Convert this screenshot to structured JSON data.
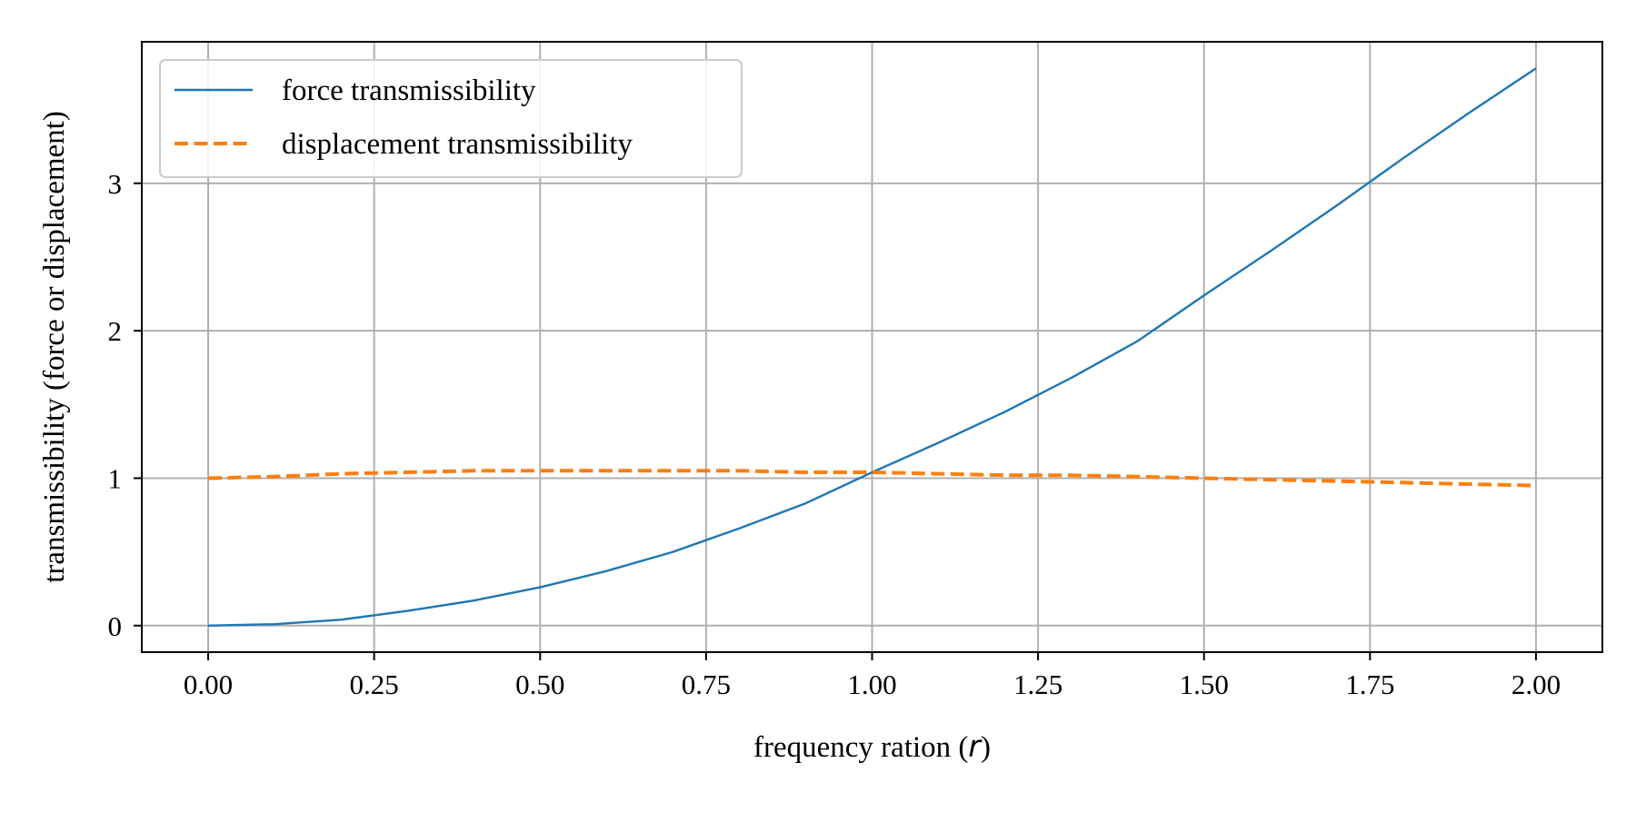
{
  "chart_data": {
    "type": "line",
    "title": "",
    "xlabel": "frequency ration (",
    "xlabel_var": "r",
    "xlabel_suffix": ")",
    "ylabel": "transmissibility (force or displacement)",
    "xlim": [
      -0.1,
      2.1
    ],
    "ylim": [
      -0.18,
      3.96
    ],
    "x_ticks": [
      0.0,
      0.25,
      0.5,
      0.75,
      1.0,
      1.25,
      1.5,
      1.75,
      2.0
    ],
    "x_tick_labels": [
      "0.00",
      "0.25",
      "0.50",
      "0.75",
      "1.00",
      "1.25",
      "1.50",
      "1.75",
      "2.00"
    ],
    "y_ticks": [
      0,
      1,
      2,
      3
    ],
    "y_tick_labels": [
      "0",
      "1",
      "2",
      "3"
    ],
    "grid": true,
    "legend_position": "upper-left",
    "x": [
      0.0,
      0.1,
      0.2,
      0.3,
      0.4,
      0.5,
      0.6,
      0.7,
      0.8,
      0.9,
      1.0,
      1.1,
      1.2,
      1.3,
      1.4,
      1.5,
      1.6,
      1.7,
      1.8,
      1.9,
      2.0
    ],
    "series": [
      {
        "name": "force transmissibility",
        "color": "#1f77b4",
        "style": "solid",
        "values": [
          0.0,
          0.01,
          0.04,
          0.1,
          0.17,
          0.26,
          0.37,
          0.5,
          0.66,
          0.83,
          1.04,
          1.24,
          1.45,
          1.68,
          1.93,
          2.24,
          2.54,
          2.85,
          3.17,
          3.48,
          3.78
        ]
      },
      {
        "name": "displacement transmissibility",
        "color": "#ff7f0e",
        "style": "dashed",
        "values": [
          1.0,
          1.01,
          1.03,
          1.04,
          1.05,
          1.05,
          1.05,
          1.05,
          1.05,
          1.04,
          1.04,
          1.03,
          1.02,
          1.02,
          1.01,
          1.0,
          0.99,
          0.98,
          0.97,
          0.96,
          0.95
        ]
      }
    ]
  }
}
